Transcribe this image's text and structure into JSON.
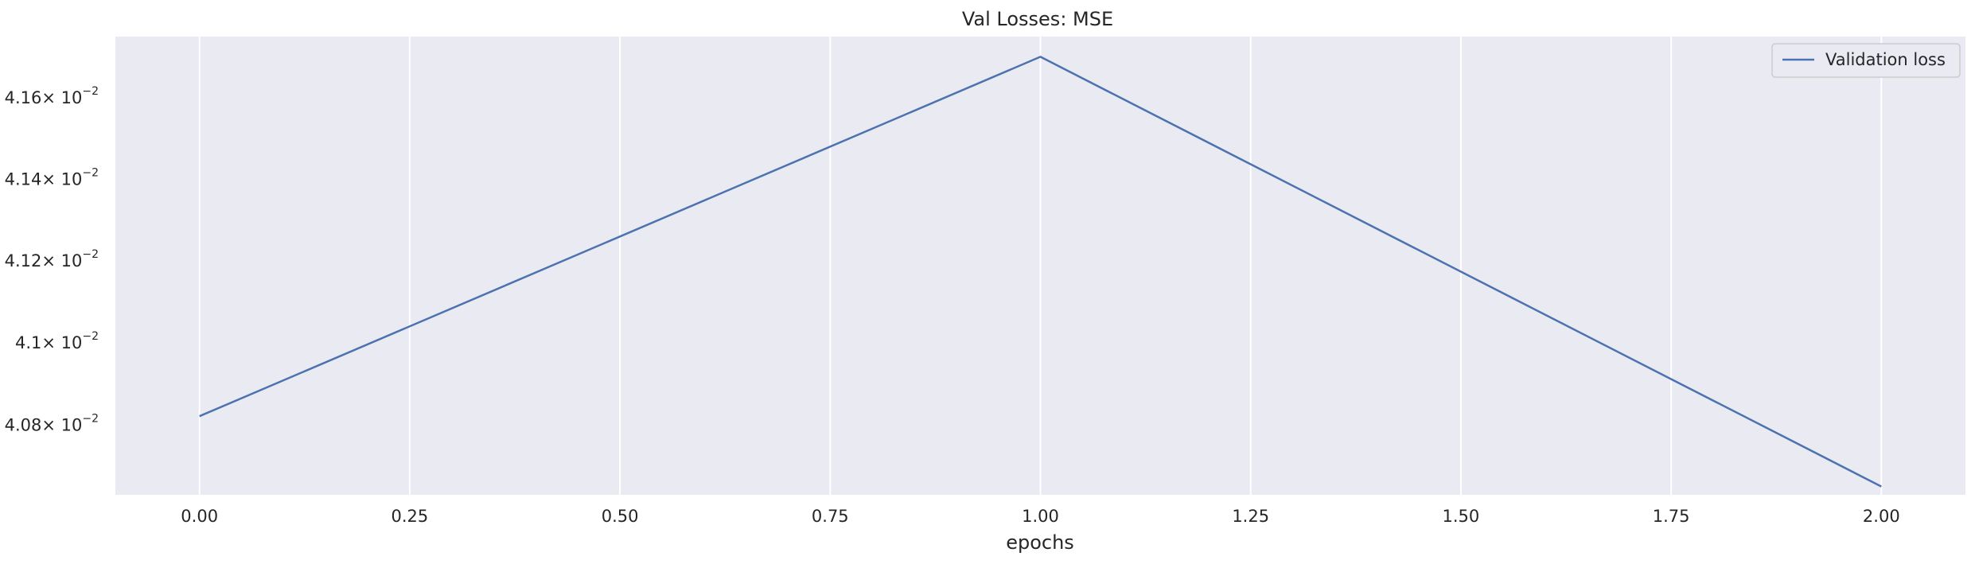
{
  "chart_data": {
    "type": "line",
    "title": "Val Losses:  MSE",
    "xlabel": "epochs",
    "ylabel": "",
    "y_scale": "log",
    "grid": "vertical",
    "legend_position": "top-right",
    "background_color": "#eaeaf2",
    "grid_color": "#ffffff",
    "xlim": [
      -0.1,
      2.1
    ],
    "ylim": [
      0.04063,
      0.04175
    ],
    "x_ticks": [
      0.0,
      0.25,
      0.5,
      0.75,
      1.0,
      1.25,
      1.5,
      1.75,
      2.0
    ],
    "x_tick_labels": [
      "0.00",
      "0.25",
      "0.50",
      "0.75",
      "1.00",
      "1.25",
      "1.50",
      "1.75",
      "2.00"
    ],
    "y_ticks": [
      0.0408,
      0.041,
      0.0412,
      0.0414,
      0.0416
    ],
    "y_tick_mantissas": [
      "4.08",
      "4.1",
      "4.12",
      "4.14",
      "4.16"
    ],
    "y_tick_base": "× 10",
    "y_tick_exponent": "−2",
    "series": [
      {
        "name": "Validation loss",
        "color": "#4c72b0",
        "x": [
          0,
          1,
          2
        ],
        "y": [
          0.04082,
          0.0417,
          0.04065
        ]
      }
    ]
  }
}
